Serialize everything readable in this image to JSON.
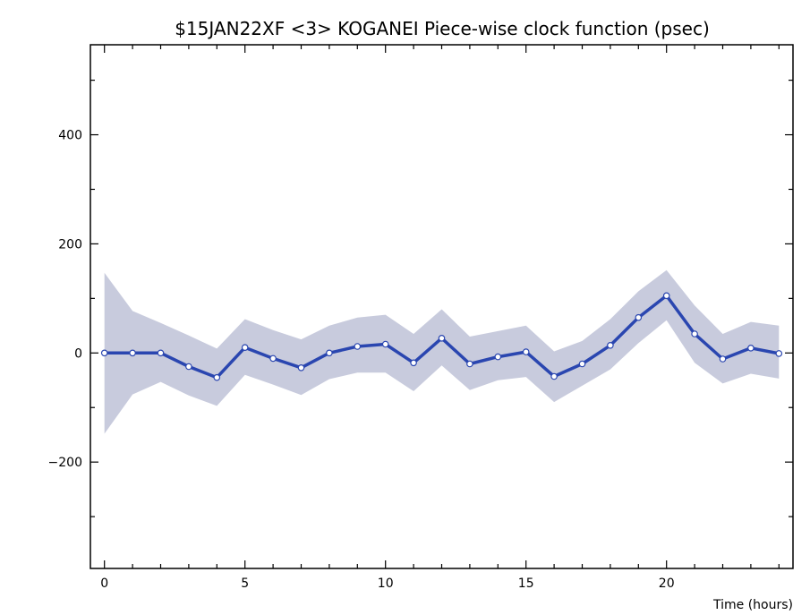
{
  "chart_data": {
    "type": "line",
    "title": "$15JAN22XF <3>  KOGANEI   Piece-wise clock function (psec)",
    "xlabel": "Time (hours)",
    "ylabel": "",
    "xlim": [
      -0.5,
      24.5
    ],
    "ylim": [
      -395,
      565
    ],
    "x_ticks": [
      0,
      5,
      10,
      15,
      20
    ],
    "y_ticks": [
      -200,
      0,
      200,
      400
    ],
    "grid": false,
    "colors": {
      "line": "#2a46b0",
      "band": "#c8cbdd",
      "marker_fill": "#ffffff",
      "axis": "#000000"
    },
    "series": [
      {
        "x": [
          0,
          1,
          2,
          3,
          4,
          5,
          6,
          7,
          8,
          9,
          10,
          11,
          12,
          13,
          14,
          15,
          16,
          17,
          18,
          19,
          20,
          21,
          22,
          23,
          24
        ],
        "values": [
          0,
          0,
          0,
          -25,
          -45,
          10,
          -10,
          -27,
          0,
          12,
          16,
          -18,
          27,
          -20,
          -7,
          2,
          -43,
          -20,
          14,
          65,
          105,
          35,
          -11,
          9,
          -1
        ],
        "upper": [
          147,
          77,
          55,
          32,
          8,
          62,
          42,
          25,
          50,
          65,
          70,
          35,
          80,
          30,
          40,
          50,
          3,
          22,
          62,
          113,
          152,
          87,
          35,
          57,
          50
        ],
        "lower": [
          -148,
          -76,
          -53,
          -78,
          -97,
          -40,
          -58,
          -77,
          -48,
          -36,
          -36,
          -70,
          -23,
          -68,
          -50,
          -44,
          -90,
          -60,
          -30,
          18,
          60,
          -18,
          -56,
          -38,
          -47
        ]
      }
    ]
  }
}
